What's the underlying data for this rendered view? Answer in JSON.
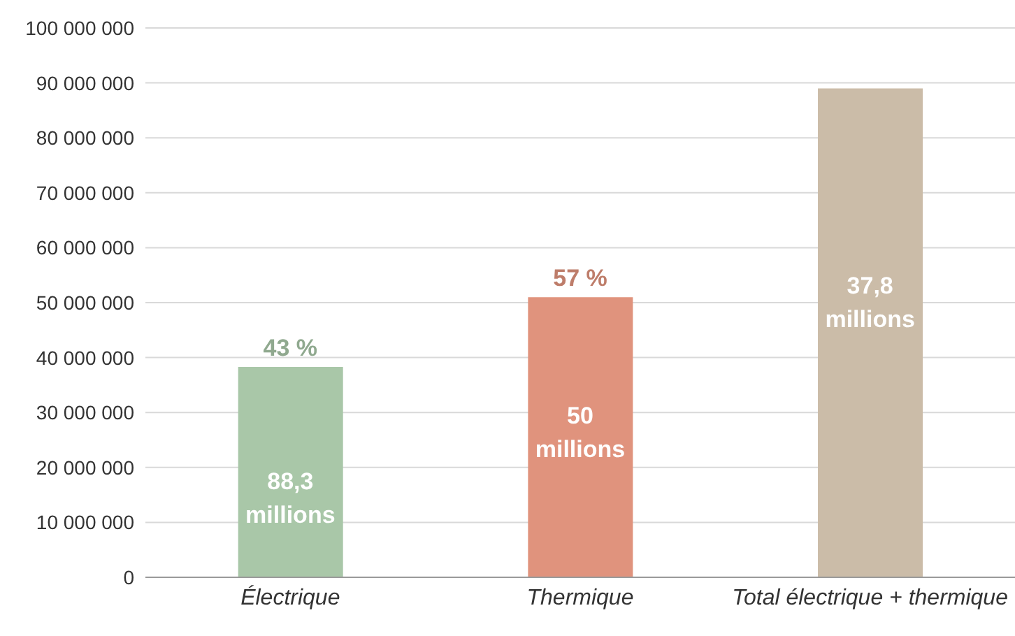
{
  "chart_data": {
    "type": "bar",
    "categories": [
      "Électrique",
      "Thermique",
      "Total électrique + thermique"
    ],
    "values": [
      38300000,
      51000000,
      89000000
    ],
    "colors": [
      "#a9c7a8",
      "#e0937d",
      "#cbbca8"
    ],
    "ylim": [
      0,
      100000000
    ],
    "yticks": [
      {
        "value": 0,
        "label": "0"
      },
      {
        "value": 10000000,
        "label": "10 000 000"
      },
      {
        "value": 20000000,
        "label": "20 000 000"
      },
      {
        "value": 30000000,
        "label": "30 000 000"
      },
      {
        "value": 40000000,
        "label": "40 000 000"
      },
      {
        "value": 50000000,
        "label": "50 000 000"
      },
      {
        "value": 60000000,
        "label": "60 000 000"
      },
      {
        "value": 70000000,
        "label": "70 000 000"
      },
      {
        "value": 80000000,
        "label": "80 000 000"
      },
      {
        "value": 90000000,
        "label": "90 000 000"
      },
      {
        "value": 100000000,
        "label": "100 000 000"
      }
    ],
    "grid": "y",
    "annotations": [
      "88,3 millions",
      "50 millions",
      "37,8 millions",
      "43 %",
      "57 %"
    ]
  }
}
